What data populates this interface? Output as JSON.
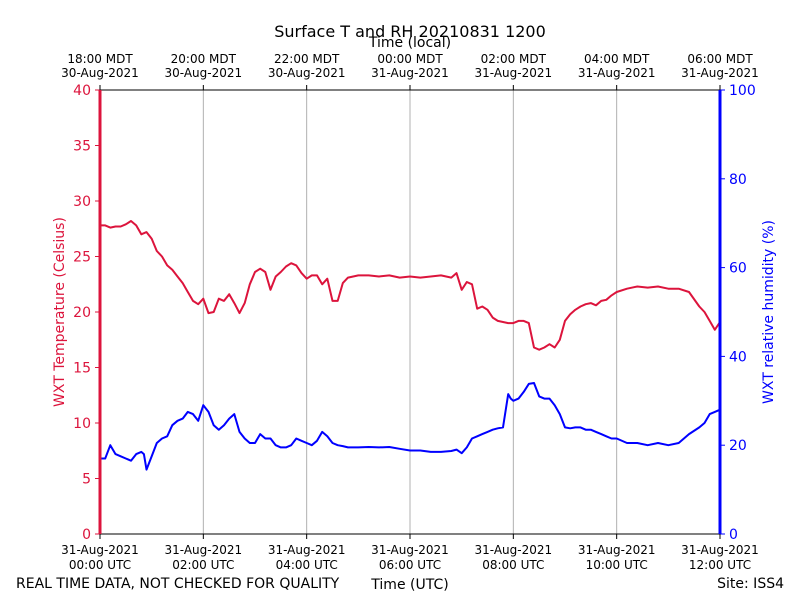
{
  "chart_data": {
    "type": "line",
    "title": "Surface T and RH 20210831 1200",
    "top_axis_label": "Time (local)",
    "bottom_axis_label": "Time (UTC)",
    "ylabel_left": "WXT Temperature (Celsius)",
    "ylabel_right": "WXT relative humidity (%)",
    "footer_left": "REAL TIME DATA, NOT CHECKED FOR QUALITY",
    "footer_right": "Site: ISS4",
    "xlim_hours_utc": [
      0,
      12
    ],
    "ylim_left": [
      0,
      40
    ],
    "ylim_right": [
      0,
      100
    ],
    "y_ticks_left": [
      "0",
      "5",
      "10",
      "15",
      "20",
      "25",
      "30",
      "35",
      "40"
    ],
    "y_ticks_right": [
      "0",
      "20",
      "40",
      "60",
      "80",
      "100"
    ],
    "x_ticks_utc": [
      {
        "l1": "31-Aug-2021",
        "l2": "00:00 UTC"
      },
      {
        "l1": "31-Aug-2021",
        "l2": "02:00 UTC"
      },
      {
        "l1": "31-Aug-2021",
        "l2": "04:00 UTC"
      },
      {
        "l1": "31-Aug-2021",
        "l2": "06:00 UTC"
      },
      {
        "l1": "31-Aug-2021",
        "l2": "08:00 UTC"
      },
      {
        "l1": "31-Aug-2021",
        "l2": "10:00 UTC"
      },
      {
        "l1": "31-Aug-2021",
        "l2": "12:00 UTC"
      }
    ],
    "x_ticks_local": [
      {
        "l1": "18:00 MDT",
        "l2": "30-Aug-2021"
      },
      {
        "l1": "20:00 MDT",
        "l2": "30-Aug-2021"
      },
      {
        "l1": "22:00 MDT",
        "l2": "30-Aug-2021"
      },
      {
        "l1": "00:00 MDT",
        "l2": "31-Aug-2021"
      },
      {
        "l1": "02:00 MDT",
        "l2": "31-Aug-2021"
      },
      {
        "l1": "04:00 MDT",
        "l2": "31-Aug-2021"
      },
      {
        "l1": "06:00 MDT",
        "l2": "31-Aug-2021"
      }
    ],
    "grid": "vertical",
    "colors": {
      "temperature": "#dc143c",
      "humidity": "#0000ff",
      "grid": "#b0b0b0"
    },
    "series": [
      {
        "axis": "left",
        "x": [
          0.0,
          0.1,
          0.2,
          0.3,
          0.4,
          0.5,
          0.6,
          0.7,
          0.8,
          0.9,
          1.0,
          1.1,
          1.2,
          1.3,
          1.4,
          1.5,
          1.6,
          1.7,
          1.8,
          1.9,
          2.0,
          2.1,
          2.2,
          2.3,
          2.4,
          2.5,
          2.6,
          2.7,
          2.8,
          2.9,
          3.0,
          3.1,
          3.2,
          3.3,
          3.4,
          3.5,
          3.6,
          3.7,
          3.8,
          3.9,
          4.0,
          4.1,
          4.2,
          4.3,
          4.4,
          4.5,
          4.6,
          4.7,
          4.8,
          4.9,
          5.0,
          5.2,
          5.4,
          5.6,
          5.8,
          6.0,
          6.2,
          6.4,
          6.6,
          6.8,
          6.9,
          7.0,
          7.1,
          7.2,
          7.3,
          7.4,
          7.5,
          7.6,
          7.7,
          7.8,
          7.9,
          8.0,
          8.1,
          8.2,
          8.3,
          8.4,
          8.5,
          8.6,
          8.7,
          8.8,
          8.9,
          9.0,
          9.1,
          9.2,
          9.3,
          9.4,
          9.5,
          9.6,
          9.7,
          9.8,
          9.9,
          10.0,
          10.2,
          10.4,
          10.6,
          10.8,
          11.0,
          11.2,
          11.4,
          11.6,
          11.7,
          11.8,
          11.9,
          12.0
        ],
        "values": [
          27.8,
          27.8,
          27.6,
          27.7,
          27.7,
          27.9,
          28.2,
          27.8,
          27.0,
          27.2,
          26.6,
          25.5,
          25.0,
          24.2,
          23.8,
          23.2,
          22.6,
          21.8,
          21.0,
          20.7,
          21.2,
          19.9,
          20.0,
          21.2,
          21.0,
          21.6,
          20.8,
          19.9,
          20.8,
          22.5,
          23.6,
          23.9,
          23.6,
          22.0,
          23.2,
          23.6,
          24.1,
          24.4,
          24.2,
          23.5,
          23.0,
          23.3,
          23.3,
          22.5,
          23.0,
          21.0,
          21.0,
          22.6,
          23.1,
          23.2,
          23.3,
          23.3,
          23.2,
          23.3,
          23.1,
          23.2,
          23.1,
          23.2,
          23.3,
          23.1,
          23.5,
          22.0,
          22.7,
          22.5,
          20.3,
          20.5,
          20.2,
          19.5,
          19.2,
          19.1,
          19.0,
          19.0,
          19.2,
          19.2,
          19.0,
          16.8,
          16.6,
          16.8,
          17.1,
          16.8,
          17.5,
          19.2,
          19.8,
          20.2,
          20.5,
          20.7,
          20.8,
          20.6,
          21.0,
          21.1,
          21.5,
          21.8,
          22.1,
          22.3,
          22.2,
          22.3,
          22.1,
          22.1,
          21.8,
          20.5,
          20.0,
          19.2,
          18.4,
          19.1
        ]
      },
      {
        "axis": "right",
        "x": [
          0.0,
          0.1,
          0.2,
          0.3,
          0.4,
          0.5,
          0.6,
          0.7,
          0.8,
          0.85,
          0.9,
          1.0,
          1.1,
          1.2,
          1.3,
          1.4,
          1.5,
          1.6,
          1.7,
          1.8,
          1.9,
          2.0,
          2.1,
          2.2,
          2.3,
          2.4,
          2.5,
          2.6,
          2.7,
          2.8,
          2.9,
          3.0,
          3.1,
          3.2,
          3.3,
          3.4,
          3.5,
          3.6,
          3.7,
          3.8,
          3.9,
          4.0,
          4.1,
          4.2,
          4.3,
          4.4,
          4.5,
          4.6,
          4.7,
          4.8,
          5.0,
          5.2,
          5.4,
          5.6,
          5.8,
          6.0,
          6.2,
          6.4,
          6.6,
          6.8,
          6.9,
          7.0,
          7.1,
          7.2,
          7.3,
          7.4,
          7.5,
          7.6,
          7.7,
          7.8,
          7.9,
          7.95,
          8.0,
          8.1,
          8.2,
          8.3,
          8.4,
          8.5,
          8.6,
          8.7,
          8.8,
          8.9,
          9.0,
          9.1,
          9.2,
          9.3,
          9.4,
          9.5,
          9.6,
          9.7,
          9.8,
          9.9,
          10.0,
          10.2,
          10.4,
          10.6,
          10.8,
          11.0,
          11.2,
          11.4,
          11.6,
          11.7,
          11.8,
          11.9,
          12.0
        ],
        "values": [
          17,
          17,
          20,
          18,
          17.5,
          17,
          16.5,
          18,
          18.5,
          18,
          14.5,
          17.5,
          20.5,
          21.5,
          22,
          24.5,
          25.5,
          26,
          27.5,
          27,
          25.5,
          29,
          27.5,
          24.5,
          23.5,
          24.5,
          26,
          27,
          23,
          21.5,
          20.5,
          20.5,
          22.5,
          21.5,
          21.5,
          20,
          19.5,
          19.5,
          20,
          21.5,
          21,
          20.5,
          20,
          21,
          23,
          22,
          20.5,
          20,
          19.8,
          19.5,
          19.5,
          19.6,
          19.5,
          19.6,
          19.2,
          18.8,
          18.8,
          18.5,
          18.5,
          18.7,
          19,
          18.2,
          19.5,
          21.5,
          22,
          22.5,
          23,
          23.5,
          23.8,
          24,
          31.5,
          30.5,
          30,
          30.5,
          32,
          33.8,
          34,
          31,
          30.5,
          30.5,
          29,
          27,
          24,
          23.8,
          24,
          24,
          23.5,
          23.5,
          23,
          22.5,
          22,
          21.5,
          21.5,
          20.5,
          20.5,
          20,
          20.5,
          20,
          20.5,
          22.5,
          24,
          25,
          27,
          27.5,
          28
        ]
      }
    ]
  }
}
